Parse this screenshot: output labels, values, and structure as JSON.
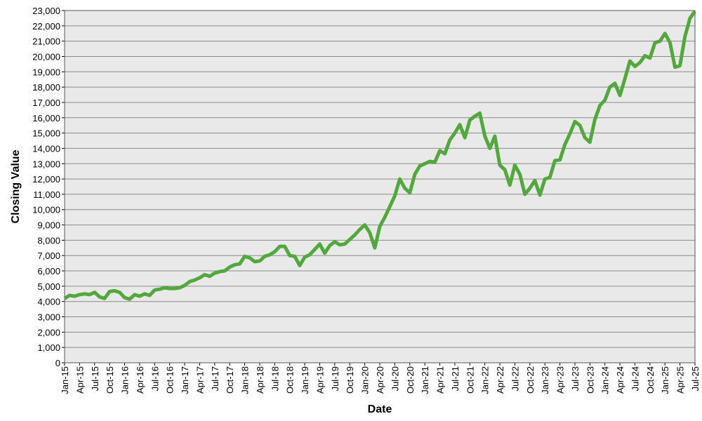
{
  "chart_data": {
    "type": "line",
    "x_label": "Date",
    "y_label": "Closing Value",
    "grid": true,
    "xlim": [
      "2015-01",
      "2025-07"
    ],
    "x": [
      "2015-01",
      "2015-02",
      "2015-03",
      "2015-04",
      "2015-05",
      "2015-06",
      "2015-07",
      "2015-08",
      "2015-09",
      "2015-10",
      "2015-11",
      "2015-12",
      "2016-01",
      "2016-02",
      "2016-03",
      "2016-04",
      "2016-05",
      "2016-06",
      "2016-07",
      "2016-08",
      "2016-09",
      "2016-10",
      "2016-11",
      "2016-12",
      "2017-01",
      "2017-02",
      "2017-03",
      "2017-04",
      "2017-05",
      "2017-06",
      "2017-07",
      "2017-08",
      "2017-09",
      "2017-10",
      "2017-11",
      "2017-12",
      "2018-01",
      "2018-02",
      "2018-03",
      "2018-04",
      "2018-05",
      "2018-06",
      "2018-07",
      "2018-08",
      "2018-09",
      "2018-10",
      "2018-11",
      "2018-12",
      "2019-01",
      "2019-02",
      "2019-03",
      "2019-04",
      "2019-05",
      "2019-06",
      "2019-07",
      "2019-08",
      "2019-09",
      "2019-10",
      "2019-11",
      "2019-12",
      "2020-01",
      "2020-02",
      "2020-03",
      "2020-04",
      "2020-05",
      "2020-06",
      "2020-07",
      "2020-08",
      "2020-09",
      "2020-10",
      "2020-11",
      "2020-12",
      "2021-01",
      "2021-02",
      "2021-03",
      "2021-04",
      "2021-05",
      "2021-06",
      "2021-07",
      "2021-08",
      "2021-09",
      "2021-10",
      "2021-11",
      "2021-12",
      "2022-01",
      "2022-02",
      "2022-03",
      "2022-04",
      "2022-05",
      "2022-06",
      "2022-07",
      "2022-08",
      "2022-09",
      "2022-10",
      "2022-11",
      "2022-12",
      "2023-01",
      "2023-02",
      "2023-03",
      "2023-04",
      "2023-05",
      "2023-06",
      "2023-07",
      "2023-08",
      "2023-09",
      "2023-10",
      "2023-11",
      "2023-12",
      "2024-01",
      "2024-02",
      "2024-03",
      "2024-04",
      "2024-05",
      "2024-06",
      "2024-07",
      "2024-08",
      "2024-09",
      "2024-10",
      "2024-11",
      "2024-12",
      "2025-01",
      "2025-02",
      "2025-03",
      "2025-04",
      "2025-05",
      "2025-06",
      "2025-07"
    ],
    "series": [
      {
        "name": "Closing Value",
        "color": "#52a83d",
        "values": [
          4200,
          4400,
          4350,
          4450,
          4500,
          4450,
          4600,
          4300,
          4200,
          4650,
          4700,
          4600,
          4250,
          4150,
          4450,
          4350,
          4500,
          4400,
          4750,
          4800,
          4900,
          4850,
          4850,
          4900,
          5050,
          5300,
          5400,
          5550,
          5750,
          5650,
          5850,
          5950,
          6000,
          6250,
          6400,
          6450,
          6950,
          6850,
          6600,
          6650,
          6950,
          7050,
          7250,
          7600,
          7600,
          7000,
          6950,
          6350,
          6900,
          7050,
          7400,
          7750,
          7150,
          7650,
          7900,
          7700,
          7750,
          8050,
          8350,
          8700,
          9000,
          8500,
          7500,
          8900,
          9500,
          10200,
          10900,
          12000,
          11400,
          11100,
          12300,
          12850,
          13000,
          13150,
          13100,
          13850,
          13650,
          14550,
          15000,
          15550,
          14700,
          15850,
          16100,
          16300,
          14800,
          14000,
          14800,
          12900,
          12600,
          11600,
          12900,
          12300,
          11000,
          11400,
          11900,
          10950,
          12000,
          12100,
          13200,
          13250,
          14250,
          14950,
          15750,
          15500,
          14700,
          14400,
          15900,
          16800,
          17150,
          18000,
          18250,
          17450,
          18550,
          19700,
          19350,
          19600,
          20050,
          19900,
          20900,
          21000,
          21500,
          20900,
          19300,
          19400,
          21300,
          22500,
          22950
        ]
      }
    ],
    "ylim": [
      0,
      23000
    ],
    "yticks": [
      0,
      {
        "value": 1000,
        "label": "1,000"
      },
      {
        "value": 2000,
        "label": "2,000"
      },
      {
        "value": 3000,
        "label": "3,000"
      },
      {
        "value": 4000,
        "label": "4,000"
      },
      {
        "value": 5000,
        "label": "5,000"
      },
      {
        "value": 6000,
        "label": "6,000"
      },
      {
        "value": 7000,
        "label": "7,000"
      },
      {
        "value": 8000,
        "label": "8,000"
      },
      {
        "value": 9000,
        "label": "9,000"
      },
      {
        "value": 10000,
        "label": "10,000"
      },
      {
        "value": 11000,
        "label": "11,000"
      },
      {
        "value": 12000,
        "label": "12,000"
      },
      {
        "value": 13000,
        "label": "13,000"
      },
      {
        "value": 14000,
        "label": "14,000"
      },
      {
        "value": 15000,
        "label": "15,000"
      },
      {
        "value": 16000,
        "label": "16,000"
      },
      {
        "value": 17000,
        "label": "17,000"
      },
      {
        "value": 18000,
        "label": "18,000"
      },
      {
        "value": 19000,
        "label": "19,000"
      },
      {
        "value": 20000,
        "label": "20,000"
      },
      {
        "value": 21000,
        "label": "21,000"
      },
      {
        "value": 22000,
        "label": "22,000"
      },
      {
        "value": 23000,
        "label": "23,000"
      }
    ],
    "xticks": [
      {
        "value": "2015-01",
        "label": "Jan-15"
      },
      {
        "value": "2015-04",
        "label": "Apr-15"
      },
      {
        "value": "2015-07",
        "label": "Jul-15"
      },
      {
        "value": "2015-10",
        "label": "Oct-15"
      },
      {
        "value": "2016-01",
        "label": "Jan-16"
      },
      {
        "value": "2016-04",
        "label": "Apr-16"
      },
      {
        "value": "2016-07",
        "label": "Jul-16"
      },
      {
        "value": "2016-10",
        "label": "Oct-16"
      },
      {
        "value": "2017-01",
        "label": "Jan-17"
      },
      {
        "value": "2017-04",
        "label": "Apr-17"
      },
      {
        "value": "2017-07",
        "label": "Jul-17"
      },
      {
        "value": "2017-10",
        "label": "Oct-17"
      },
      {
        "value": "2018-01",
        "label": "Jan-18"
      },
      {
        "value": "2018-04",
        "label": "Apr-18"
      },
      {
        "value": "2018-07",
        "label": "Jul-18"
      },
      {
        "value": "2018-10",
        "label": "Oct-18"
      },
      {
        "value": "2019-01",
        "label": "Jan-19"
      },
      {
        "value": "2019-04",
        "label": "Apr-19"
      },
      {
        "value": "2019-07",
        "label": "Jul-19"
      },
      {
        "value": "2019-10",
        "label": "Oct-19"
      },
      {
        "value": "2020-01",
        "label": "Jan-20"
      },
      {
        "value": "2020-04",
        "label": "Apr-20"
      },
      {
        "value": "2020-07",
        "label": "Jul-20"
      },
      {
        "value": "2020-10",
        "label": "Oct-20"
      },
      {
        "value": "2021-01",
        "label": "Jan-21"
      },
      {
        "value": "2021-04",
        "label": "Apr-21"
      },
      {
        "value": "2021-07",
        "label": "Jul-21"
      },
      {
        "value": "2021-10",
        "label": "Oct-21"
      },
      {
        "value": "2022-01",
        "label": "Jan-22"
      },
      {
        "value": "2022-04",
        "label": "Apr-22"
      },
      {
        "value": "2022-07",
        "label": "Jul-22"
      },
      {
        "value": "2022-10",
        "label": "Oct-22"
      },
      {
        "value": "2023-01",
        "label": "Jan-23"
      },
      {
        "value": "2023-04",
        "label": "Apr-23"
      },
      {
        "value": "2023-07",
        "label": "Jul-23"
      },
      {
        "value": "2023-10",
        "label": "Oct-23"
      },
      {
        "value": "2024-01",
        "label": "Jan-24"
      },
      {
        "value": "2024-04",
        "label": "Apr-24"
      },
      {
        "value": "2024-07",
        "label": "Jul-24"
      },
      {
        "value": "2024-10",
        "label": "Oct-24"
      },
      {
        "value": "2025-01",
        "label": "Jan-25"
      },
      {
        "value": "2025-04",
        "label": "Apr-25"
      },
      {
        "value": "2025-07",
        "label": "Jul-25"
      }
    ]
  }
}
